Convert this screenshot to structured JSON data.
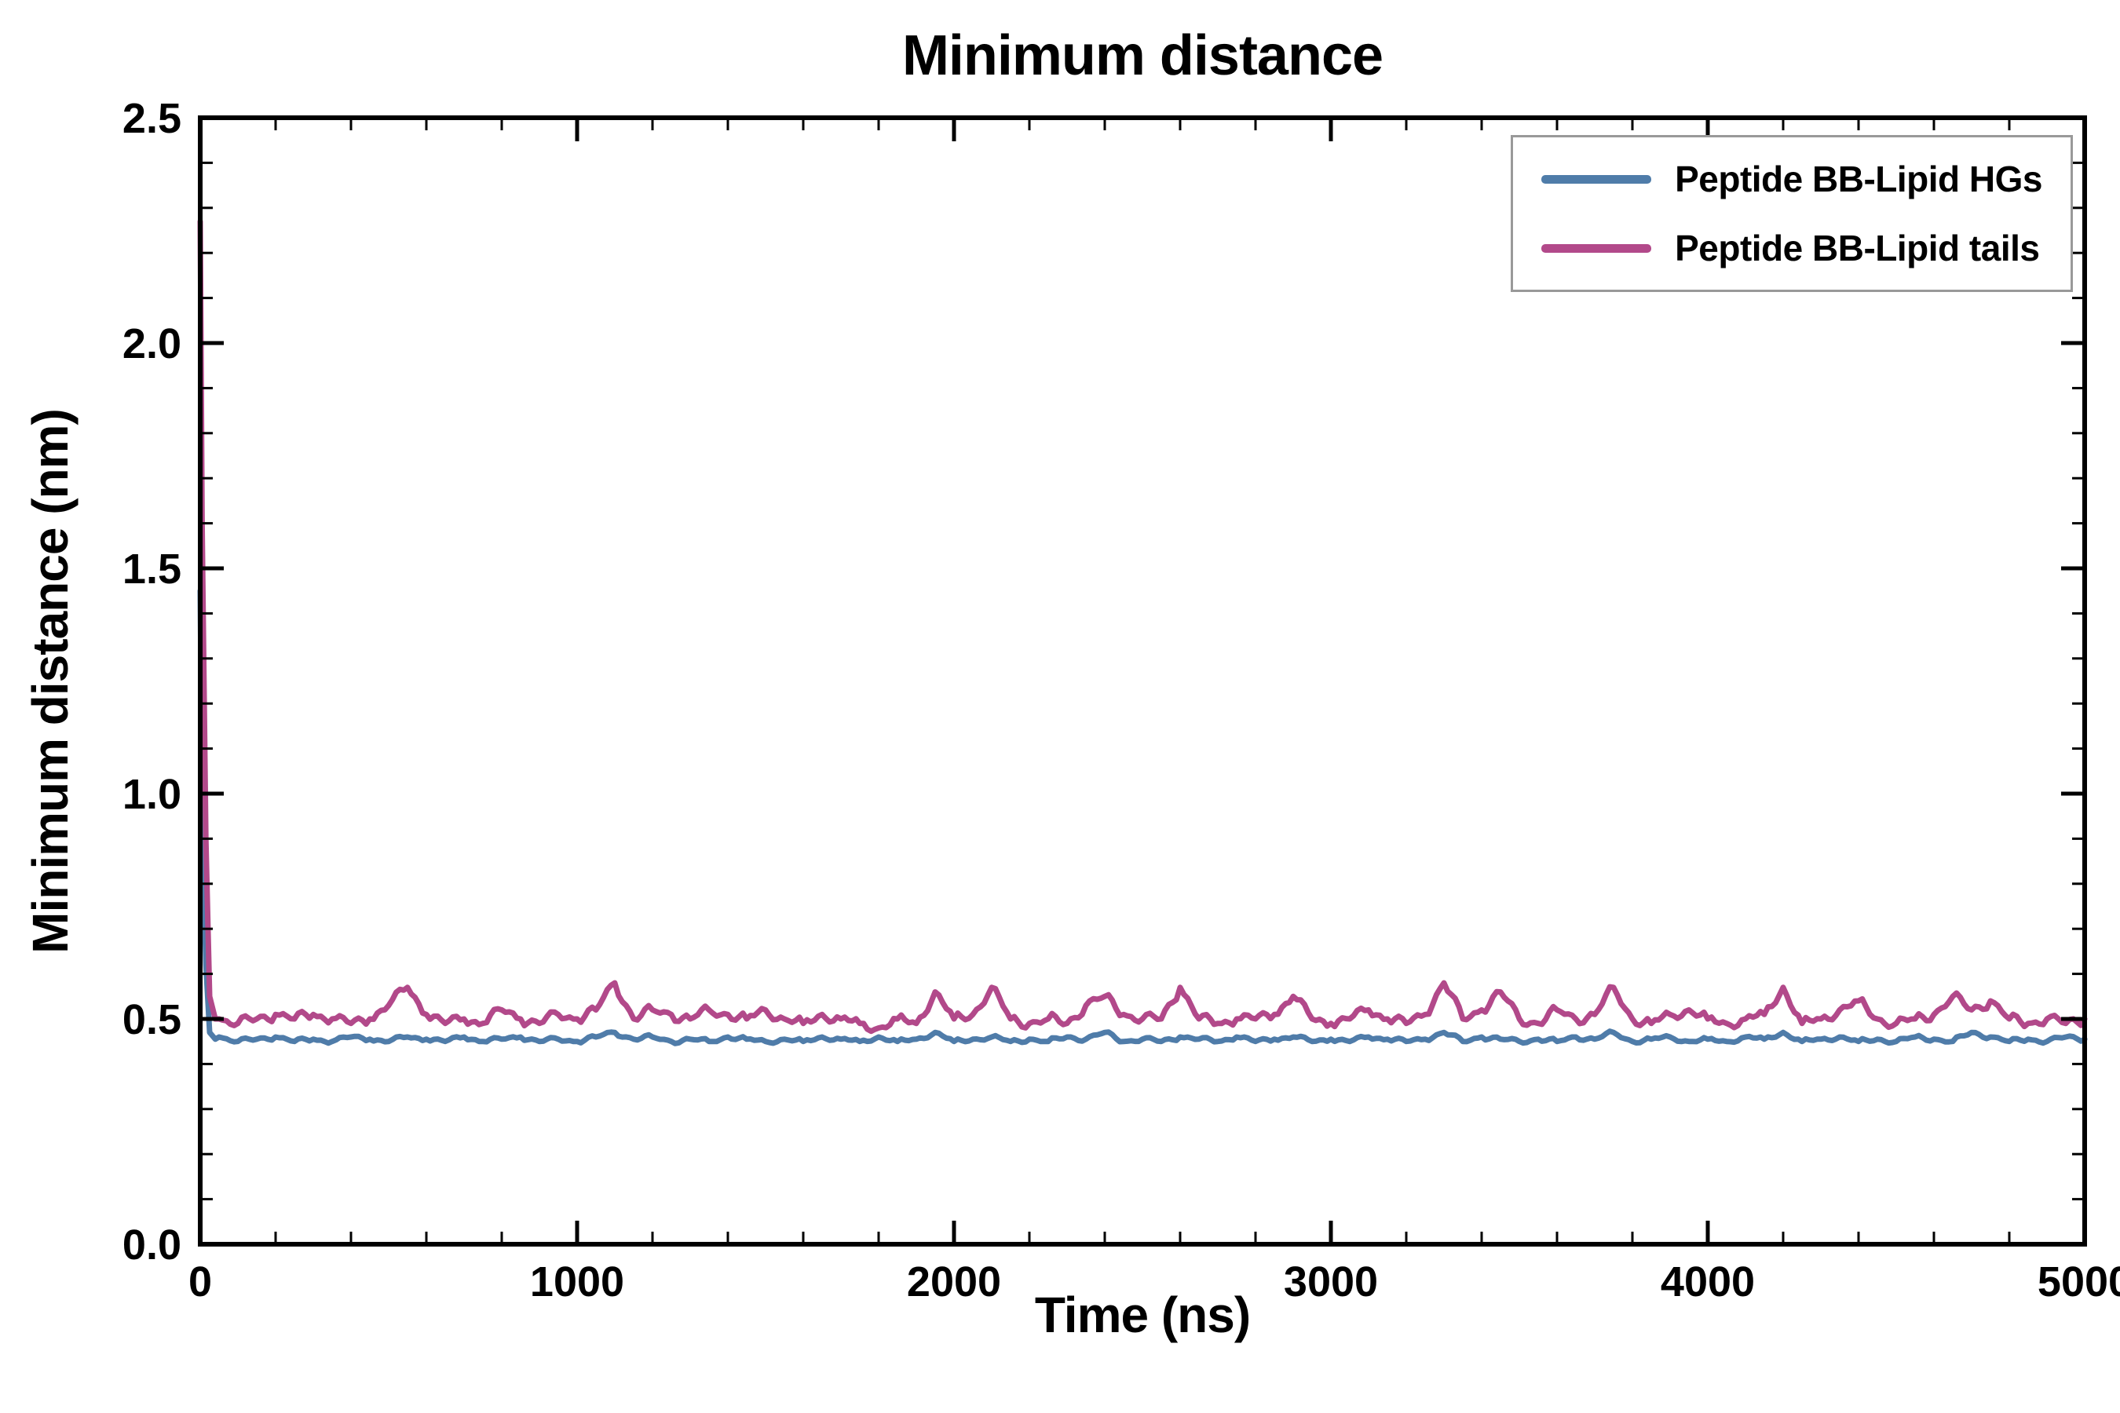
{
  "figure": {
    "background": "#ffffff"
  },
  "chart_data": {
    "type": "line",
    "title": "Minimum distance",
    "xlabel": "Time (ns)",
    "ylabel": "Minimum distance (nm)",
    "xlim": [
      0,
      5000
    ],
    "ylim": [
      0.0,
      2.5
    ],
    "xticks": [
      0,
      1000,
      2000,
      3000,
      4000,
      5000
    ],
    "yticks": [
      0.0,
      0.5,
      1.0,
      1.5,
      2.0,
      2.5
    ],
    "minor_xtick_step": 200,
    "minor_ytick_step": 0.1,
    "grid": false,
    "legend_position": "upper right",
    "x": [
      0,
      5,
      15,
      25,
      40,
      50,
      100,
      150,
      200,
      250,
      300,
      350,
      400,
      450,
      500,
      550,
      600,
      650,
      700,
      750,
      800,
      850,
      900,
      950,
      1000,
      1050,
      1100,
      1150,
      1200,
      1250,
      1300,
      1350,
      1400,
      1450,
      1500,
      1550,
      1600,
      1650,
      1700,
      1750,
      1800,
      1850,
      1900,
      1950,
      2000,
      2050,
      2100,
      2150,
      2200,
      2250,
      2300,
      2350,
      2400,
      2450,
      2500,
      2550,
      2600,
      2650,
      2700,
      2750,
      2800,
      2850,
      2900,
      2950,
      3000,
      3050,
      3100,
      3150,
      3200,
      3250,
      3300,
      3350,
      3400,
      3450,
      3500,
      3550,
      3600,
      3650,
      3700,
      3750,
      3800,
      3850,
      3900,
      3950,
      4000,
      4050,
      4100,
      4150,
      4200,
      4250,
      4300,
      4350,
      4400,
      4450,
      4500,
      4550,
      4600,
      4650,
      4700,
      4750,
      4800,
      4850,
      4900,
      4950,
      5000
    ],
    "series": [
      {
        "name": "Peptide BB-Lipid HGs",
        "color": "#4f7ca9",
        "linewidth": 7,
        "noise_amplitude": 0.003,
        "values": [
          1.45,
          0.95,
          0.62,
          0.47,
          0.455,
          0.46,
          0.45,
          0.455,
          0.46,
          0.45,
          0.455,
          0.45,
          0.46,
          0.455,
          0.45,
          0.46,
          0.455,
          0.45,
          0.46,
          0.45,
          0.455,
          0.46,
          0.45,
          0.455,
          0.45,
          0.46,
          0.47,
          0.455,
          0.46,
          0.45,
          0.455,
          0.45,
          0.46,
          0.455,
          0.45,
          0.455,
          0.45,
          0.46,
          0.455,
          0.45,
          0.46,
          0.45,
          0.455,
          0.47,
          0.45,
          0.455,
          0.46,
          0.45,
          0.455,
          0.45,
          0.46,
          0.455,
          0.47,
          0.45,
          0.455,
          0.45,
          0.46,
          0.455,
          0.45,
          0.46,
          0.45,
          0.455,
          0.46,
          0.45,
          0.455,
          0.45,
          0.46,
          0.455,
          0.45,
          0.455,
          0.47,
          0.45,
          0.46,
          0.455,
          0.45,
          0.455,
          0.45,
          0.46,
          0.455,
          0.47,
          0.45,
          0.455,
          0.46,
          0.45,
          0.455,
          0.45,
          0.46,
          0.455,
          0.47,
          0.45,
          0.455,
          0.46,
          0.45,
          0.455,
          0.45,
          0.46,
          0.455,
          0.45,
          0.47,
          0.46,
          0.45,
          0.455,
          0.45,
          0.46,
          0.455
        ]
      },
      {
        "name": "Peptide BB-Lipid tails",
        "color": "#b2498a",
        "linewidth": 7,
        "noise_amplitude": 0.007,
        "values": [
          2.27,
          1.6,
          0.9,
          0.55,
          0.5,
          0.5,
          0.49,
          0.5,
          0.51,
          0.5,
          0.51,
          0.5,
          0.49,
          0.5,
          0.53,
          0.57,
          0.51,
          0.49,
          0.5,
          0.49,
          0.52,
          0.5,
          0.49,
          0.51,
          0.5,
          0.52,
          0.58,
          0.5,
          0.52,
          0.51,
          0.5,
          0.52,
          0.51,
          0.5,
          0.52,
          0.5,
          0.49,
          0.51,
          0.5,
          0.49,
          0.48,
          0.5,
          0.49,
          0.56,
          0.5,
          0.51,
          0.57,
          0.5,
          0.49,
          0.5,
          0.49,
          0.53,
          0.55,
          0.51,
          0.5,
          0.5,
          0.57,
          0.5,
          0.49,
          0.5,
          0.5,
          0.51,
          0.55,
          0.5,
          0.49,
          0.5,
          0.52,
          0.5,
          0.49,
          0.51,
          0.58,
          0.5,
          0.52,
          0.56,
          0.5,
          0.49,
          0.52,
          0.5,
          0.51,
          0.57,
          0.5,
          0.49,
          0.51,
          0.52,
          0.5,
          0.49,
          0.5,
          0.51,
          0.57,
          0.49,
          0.5,
          0.52,
          0.54,
          0.5,
          0.49,
          0.5,
          0.51,
          0.55,
          0.52,
          0.54,
          0.5,
          0.49,
          0.5,
          0.49,
          0.5
        ]
      }
    ]
  }
}
